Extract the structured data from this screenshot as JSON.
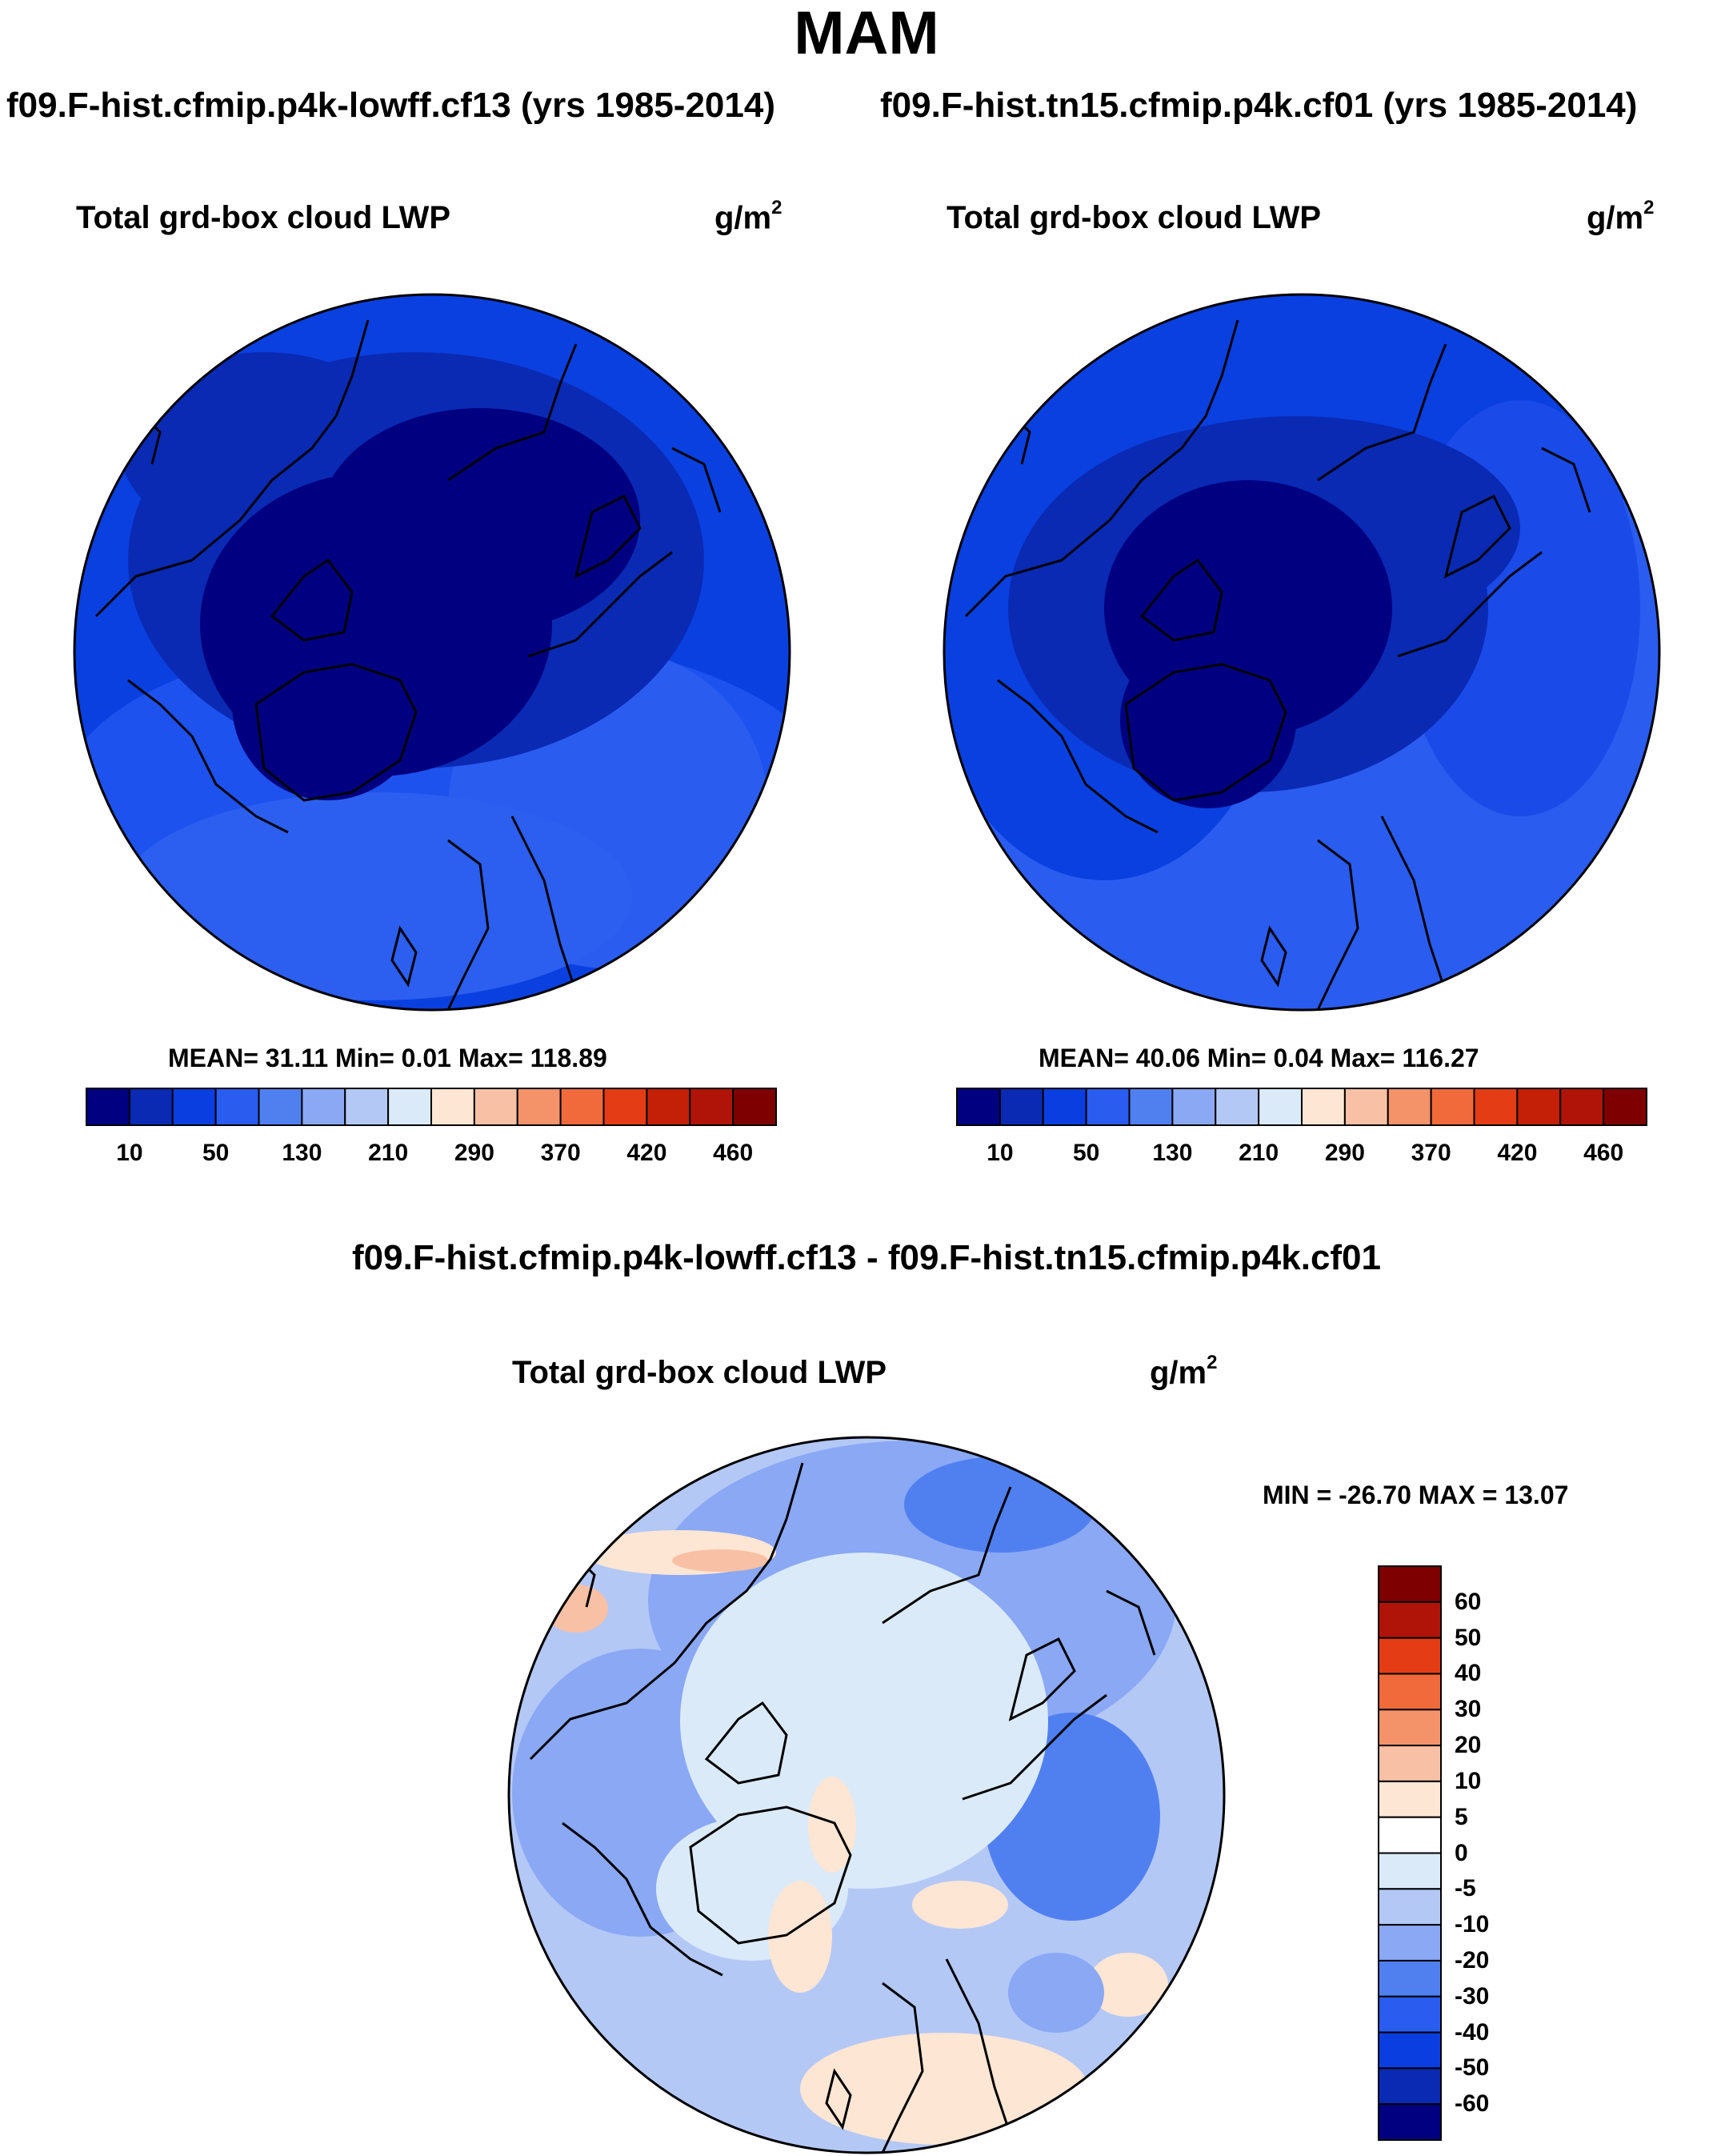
{
  "figure": {
    "title": "MAM",
    "left_case": "f09.F-hist.cfmip.p4k-lowff.cf13 (yrs 1985-2014)",
    "right_case": "f09.F-hist.tn15.cfmip.p4k.cf01 (yrs 1985-2014)",
    "diff_title": "f09.F-hist.cfmip.p4k-lowff.cf13 - f09.F-hist.tn15.cfmip.p4k.cf01"
  },
  "panels": {
    "left": {
      "variable": "Total grd-box cloud LWP",
      "units_base": "g/m",
      "units_exp": "2",
      "stats": "MEAN=  31.11  Min=   0.01  Max= 118.89"
    },
    "right": {
      "variable": "Total grd-box cloud LWP",
      "units_base": "g/m",
      "units_exp": "2",
      "stats": "MEAN=  40.06  Min=   0.04  Max= 116.27"
    },
    "diff": {
      "variable": "Total grd-box cloud LWP",
      "units_base": "g/m",
      "units_exp": "2",
      "stats": "MIN = -26.70 MAX =  13.07"
    }
  },
  "colorbar_abs": {
    "labels": [
      "10",
      "50",
      "130",
      "210",
      "290",
      "370",
      "420",
      "460"
    ],
    "colors": [
      "#000080",
      "#0a2ab4",
      "#0a3ee0",
      "#2a5cf0",
      "#5080f0",
      "#8aa8f4",
      "#b4c8f6",
      "#daeaf8",
      "#fde6d4",
      "#f8c0a4",
      "#f4926a",
      "#f06a3c",
      "#e43c14",
      "#c42008",
      "#b01408",
      "#7e0000"
    ]
  },
  "colorbar_diff": {
    "labels": [
      "60",
      "50",
      "40",
      "30",
      "20",
      "10",
      "5",
      "0",
      "-5",
      "-10",
      "-20",
      "-30",
      "-40",
      "-50",
      "-60"
    ],
    "colors": [
      "#7e0000",
      "#b01408",
      "#e43c14",
      "#f06a3c",
      "#f4926a",
      "#f8c0a4",
      "#fde6d4",
      "#ffffff",
      "#daeaf8",
      "#b4c8f6",
      "#8aa8f4",
      "#5080f0",
      "#2a5cf0",
      "#0a3ee0",
      "#0a2ab4",
      "#000080"
    ]
  }
}
